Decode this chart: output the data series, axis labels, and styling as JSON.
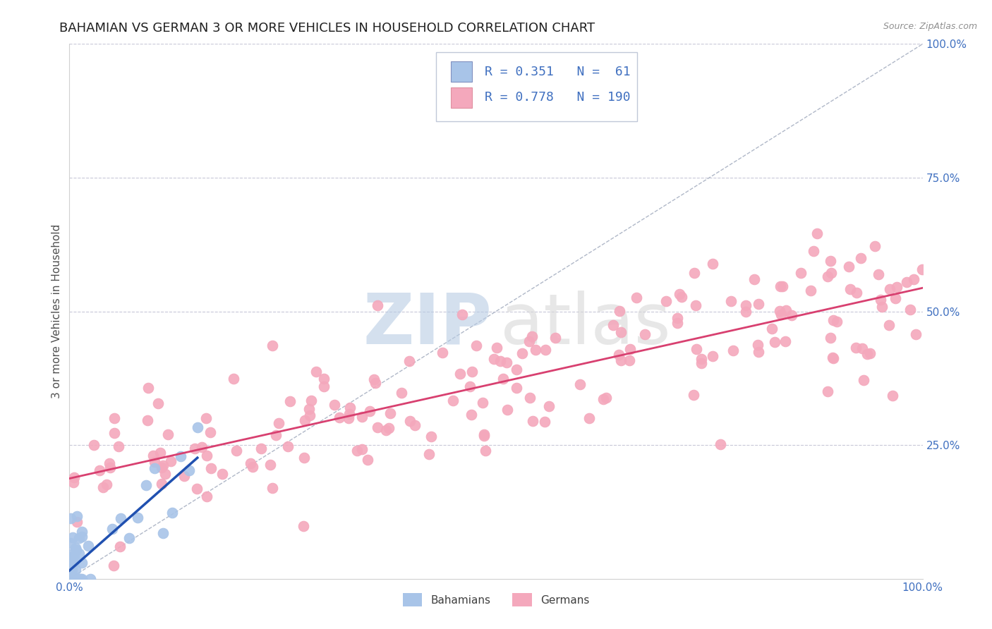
{
  "title": "BAHAMIAN VS GERMAN 3 OR MORE VEHICLES IN HOUSEHOLD CORRELATION CHART",
  "source": "Source: ZipAtlas.com",
  "ylabel": "3 or more Vehicles in Household",
  "xlim": [
    0.0,
    1.0
  ],
  "ylim": [
    0.0,
    1.0
  ],
  "bahamian_R": 0.351,
  "bahamian_N": 61,
  "german_R": 0.778,
  "german_N": 190,
  "bahamian_color": "#a8c4e8",
  "german_color": "#f4a8bc",
  "bahamian_line_color": "#2050b0",
  "german_line_color": "#d84070",
  "background_color": "#ffffff",
  "grid_color": "#c8c8d8",
  "tick_label_color": "#4070c0",
  "title_fontsize": 13,
  "axis_label_fontsize": 11,
  "legend_fontsize": 13,
  "watermark_zip_color": "#b8cce4",
  "watermark_atlas_color": "#d8d8d8"
}
